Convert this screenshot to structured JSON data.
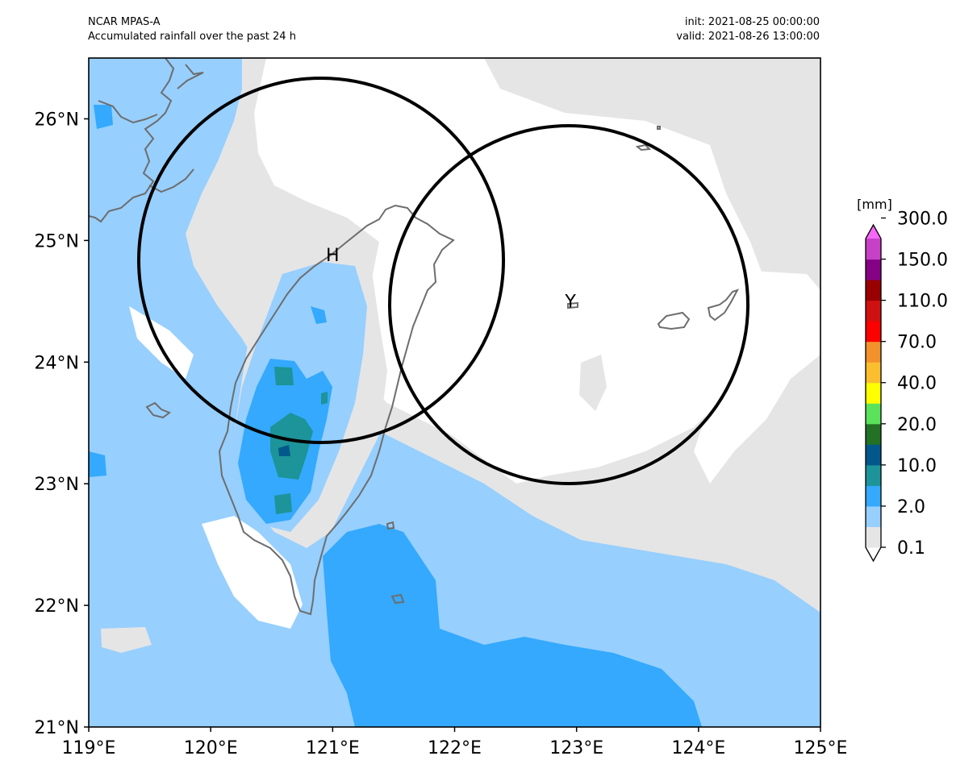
{
  "header": {
    "model": "NCAR MPAS-A",
    "description": "Accumulated rainfall over the past 24 h",
    "init": "init: 2021-08-25 00:00:00",
    "valid": "valid: 2021-08-26 13:00:00"
  },
  "axes": {
    "lon_labels": [
      "119°E",
      "120°E",
      "121°E",
      "122°E",
      "123°E",
      "124°E",
      "125°E"
    ],
    "lat_labels": [
      "21°N",
      "22°N",
      "23°N",
      "24°N",
      "25°N",
      "26°N"
    ]
  },
  "markers": [
    {
      "label": "H",
      "lon": 121.0,
      "lat": 24.83
    },
    {
      "label": "Y",
      "lon": 122.95,
      "lat": 24.45
    }
  ],
  "colorbar": {
    "units": "[mm]",
    "tick_labels": [
      "0.1",
      "2.0",
      "10.0",
      "20.0",
      "40.0",
      "70.0",
      "110.0",
      "150.0",
      "300.0"
    ],
    "colors": [
      "#ffffff",
      "#e5e5e5",
      "#97cffe",
      "#34a9fd",
      "#1c9499",
      "#02588b",
      "#227125",
      "#5ae35a",
      "#fefe00",
      "#fbbe2f",
      "#f3922b",
      "#fd0000",
      "#d01111",
      "#9a0000",
      "#850285",
      "#c641c6",
      "#f667f7"
    ]
  },
  "palette": {
    "none": "#ffffff",
    "light": "#e5e5e5",
    "pale_blue": "#97cffe",
    "blue": "#34a9fd",
    "teal": "#1c9499",
    "dark_blue": "#02588b",
    "dark_green": "#227125"
  }
}
